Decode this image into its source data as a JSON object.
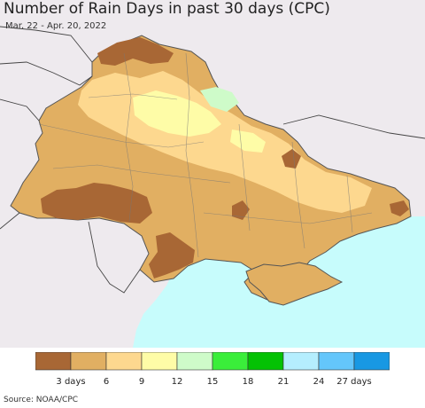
{
  "header": {
    "title": "Number of Rain Days in past 30 days (CPC)",
    "date_range": "Mar. 22 - Apr. 20, 2022"
  },
  "colors": {
    "background_land": "#eeeaee",
    "sea": "#c7fcfc",
    "border": "#555555",
    "bins": [
      "#a86735",
      "#e1af62",
      "#fdd88f",
      "#fefca7",
      "#cefbc9",
      "#3aee3a",
      "#04c204",
      "#b5eefe",
      "#64c6fb",
      "#1898e3"
    ]
  },
  "legend": {
    "tick_labels": [
      "3 days",
      "6",
      "9",
      "12",
      "15",
      "18",
      "21",
      "24",
      "27 days"
    ]
  },
  "footer": {
    "source": "Source: NOAA/CPC"
  }
}
